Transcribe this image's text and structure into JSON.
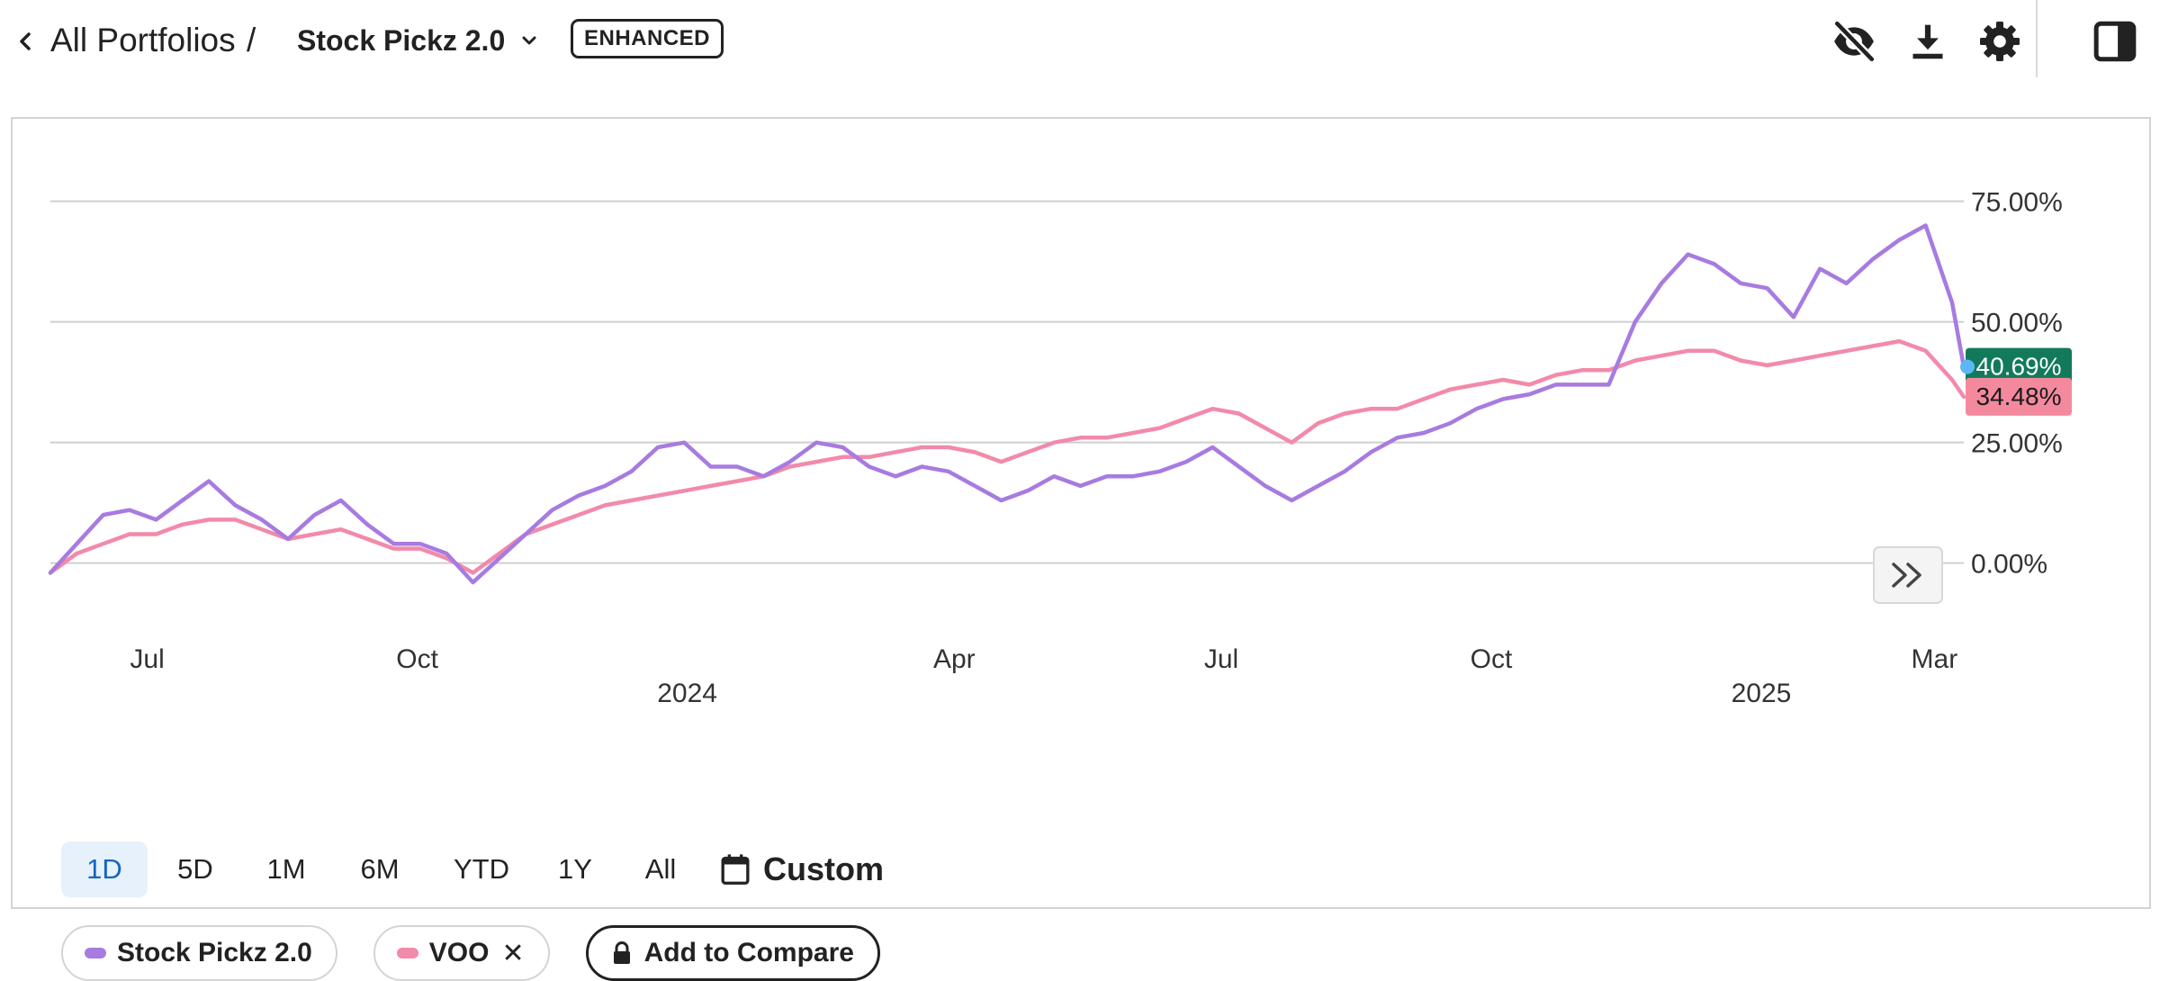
{
  "header": {
    "breadcrumb_root": "All Portfolios",
    "breadcrumb_sep": "/",
    "portfolio_name": "Stock Pickz 2.0",
    "badge": "ENHANCED",
    "icons": [
      "chevron-left-icon",
      "chevron-down-icon",
      "eye-off-icon",
      "download-icon",
      "gear-icon",
      "sidebar-panel-icon"
    ]
  },
  "chart_data": {
    "type": "line",
    "y_tick_labels": [
      "75.00%",
      "50.00%",
      "25.00%",
      "0.00%"
    ],
    "y_ticks": [
      75,
      50,
      25,
      0
    ],
    "ylim": [
      -12,
      88
    ],
    "x_ticks": [
      {
        "label": "Jul",
        "x": "2023-07-01"
      },
      {
        "label": "Oct",
        "x": "2023-10-01"
      },
      {
        "label": "2024",
        "x": "2024-01-01",
        "year": true
      },
      {
        "label": "Apr",
        "x": "2024-04-01"
      },
      {
        "label": "Jul",
        "x": "2024-07-01"
      },
      {
        "label": "Oct",
        "x": "2024-10-01"
      },
      {
        "label": "2025",
        "x": "2025-01-01",
        "year": true
      },
      {
        "label": "Mar",
        "x": "2025-03-01"
      }
    ],
    "xlim": [
      "2023-05-29",
      "2025-03-11"
    ],
    "grid": true,
    "series": [
      {
        "name": "Stock Pickz 2.0",
        "color": "#a77be0",
        "last_label": "40.69%",
        "label_bg": "#127a5b",
        "label_color": "#ffffff",
        "x": [
          "2023-05-29",
          "2023-06-07",
          "2023-06-16",
          "2023-06-25",
          "2023-07-04",
          "2023-07-13",
          "2023-07-22",
          "2023-07-31",
          "2023-08-09",
          "2023-08-18",
          "2023-08-27",
          "2023-09-05",
          "2023-09-14",
          "2023-09-23",
          "2023-10-02",
          "2023-10-11",
          "2023-10-20",
          "2023-10-29",
          "2023-11-07",
          "2023-11-16",
          "2023-11-25",
          "2023-12-04",
          "2023-12-13",
          "2023-12-22",
          "2023-12-31",
          "2024-01-09",
          "2024-01-18",
          "2024-01-27",
          "2024-02-05",
          "2024-02-14",
          "2024-02-23",
          "2024-03-03",
          "2024-03-12",
          "2024-03-21",
          "2024-03-30",
          "2024-04-08",
          "2024-04-17",
          "2024-04-26",
          "2024-05-05",
          "2024-05-14",
          "2024-05-23",
          "2024-06-01",
          "2024-06-10",
          "2024-06-19",
          "2024-06-28",
          "2024-07-07",
          "2024-07-16",
          "2024-07-25",
          "2024-08-03",
          "2024-08-12",
          "2024-08-21",
          "2024-08-30",
          "2024-09-08",
          "2024-09-17",
          "2024-09-26",
          "2024-10-05",
          "2024-10-14",
          "2024-10-23",
          "2024-11-01",
          "2024-11-10",
          "2024-11-19",
          "2024-11-28",
          "2024-12-07",
          "2024-12-16",
          "2024-12-25",
          "2025-01-03",
          "2025-01-12",
          "2025-01-21",
          "2025-01-30",
          "2025-02-08",
          "2025-02-17",
          "2025-02-26",
          "2025-03-07",
          "2025-03-11"
        ],
        "values": [
          -2,
          4,
          10,
          11,
          9,
          13,
          17,
          12,
          9,
          5,
          10,
          13,
          8,
          4,
          4,
          2,
          -4,
          1,
          6,
          11,
          14,
          16,
          19,
          24,
          25,
          20,
          20,
          18,
          21,
          25,
          24,
          20,
          18,
          20,
          19,
          16,
          13,
          15,
          18,
          16,
          18,
          18,
          19,
          21,
          24,
          20,
          16,
          13,
          16,
          19,
          23,
          26,
          27,
          29,
          32,
          34,
          35,
          37,
          37,
          37,
          50,
          58,
          64,
          62,
          58,
          57,
          51,
          61,
          58,
          63,
          67,
          70,
          54,
          40.69
        ]
      },
      {
        "name": "VOO",
        "color": "#f28aa9",
        "last_label": "34.48%",
        "label_bg": "#f4899e",
        "label_color": "#1a1a1a",
        "x": [
          "2023-05-29",
          "2023-06-07",
          "2023-06-16",
          "2023-06-25",
          "2023-07-04",
          "2023-07-13",
          "2023-07-22",
          "2023-07-31",
          "2023-08-09",
          "2023-08-18",
          "2023-08-27",
          "2023-09-05",
          "2023-09-14",
          "2023-09-23",
          "2023-10-02",
          "2023-10-11",
          "2023-10-20",
          "2023-10-29",
          "2023-11-07",
          "2023-11-16",
          "2023-11-25",
          "2023-12-04",
          "2023-12-13",
          "2023-12-22",
          "2023-12-31",
          "2024-01-09",
          "2024-01-18",
          "2024-01-27",
          "2024-02-05",
          "2024-02-14",
          "2024-02-23",
          "2024-03-03",
          "2024-03-12",
          "2024-03-21",
          "2024-03-30",
          "2024-04-08",
          "2024-04-17",
          "2024-04-26",
          "2024-05-05",
          "2024-05-14",
          "2024-05-23",
          "2024-06-01",
          "2024-06-10",
          "2024-06-19",
          "2024-06-28",
          "2024-07-07",
          "2024-07-16",
          "2024-07-25",
          "2024-08-03",
          "2024-08-12",
          "2024-08-21",
          "2024-08-30",
          "2024-09-08",
          "2024-09-17",
          "2024-09-26",
          "2024-10-05",
          "2024-10-14",
          "2024-10-23",
          "2024-11-01",
          "2024-11-10",
          "2024-11-19",
          "2024-11-28",
          "2024-12-07",
          "2024-12-16",
          "2024-12-25",
          "2025-01-03",
          "2025-01-12",
          "2025-01-21",
          "2025-01-30",
          "2025-02-08",
          "2025-02-17",
          "2025-02-26",
          "2025-03-07",
          "2025-03-11"
        ],
        "values": [
          -2,
          2,
          4,
          6,
          6,
          8,
          9,
          9,
          7,
          5,
          6,
          7,
          5,
          3,
          3,
          1,
          -2,
          2,
          6,
          8,
          10,
          12,
          13,
          14,
          15,
          16,
          17,
          18,
          20,
          21,
          22,
          22,
          23,
          24,
          24,
          23,
          21,
          23,
          25,
          26,
          26,
          27,
          28,
          30,
          32,
          31,
          28,
          25,
          29,
          31,
          32,
          32,
          34,
          36,
          37,
          38,
          37,
          39,
          40,
          40,
          42,
          43,
          44,
          44,
          42,
          41,
          42,
          43,
          44,
          45,
          46,
          44,
          38,
          34.48
        ]
      }
    ]
  },
  "ranges": {
    "items": [
      "1D",
      "5D",
      "1M",
      "6M",
      "YTD",
      "1Y",
      "All"
    ],
    "active": "1D",
    "custom_label": "Custom"
  },
  "legend": {
    "series1_label": "Stock Pickz 2.0",
    "series2_label": "VOO",
    "close_symbol": "✕",
    "compare_label": "Add to Compare"
  }
}
